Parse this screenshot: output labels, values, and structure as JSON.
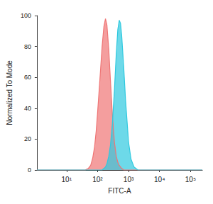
{
  "chart_data": {
    "type": "line",
    "x": [
      1.1,
      30,
      40,
      50,
      60,
      70,
      80,
      90,
      100,
      120,
      140,
      160,
      180,
      200,
      230,
      260,
      300,
      350,
      400,
      450,
      500,
      550,
      600,
      700,
      800,
      1000,
      1200,
      1500,
      2000,
      3000,
      240000
    ],
    "series": [
      {
        "color": "#ef7575",
        "values": [
          0,
          0,
          0,
          1,
          3,
          8,
          15,
          25,
          37,
          60,
          80,
          93,
          98,
          94,
          78,
          58,
          36,
          18,
          9,
          5,
          3,
          2,
          1,
          0,
          0,
          0,
          0,
          0,
          0,
          0,
          0
        ]
      },
      {
        "color": "#2fc9df",
        "values": [
          0,
          0,
          0,
          0,
          0,
          0,
          0,
          0,
          0,
          0,
          0,
          1,
          2,
          4,
          9,
          16,
          30,
          52,
          75,
          91,
          97,
          95,
          87,
          66,
          45,
          18,
          7,
          2,
          0,
          0,
          0
        ]
      }
    ],
    "xlabel": "FITC-A",
    "ylabel": "Normalized To Mode",
    "log": "x",
    "xlim": [
      1.1,
      240000
    ],
    "xticks": [
      {
        "value": 10,
        "label": "10¹"
      },
      {
        "value": 100,
        "label": "10²"
      },
      {
        "value": 1000,
        "label": "10³"
      },
      {
        "value": 10000,
        "label": "10⁴"
      },
      {
        "value": 100000,
        "label": "10⁵"
      }
    ],
    "ylim": [
      0,
      100
    ],
    "yticks": [
      0,
      20,
      40,
      60,
      80,
      100
    ],
    "grid": false
  }
}
